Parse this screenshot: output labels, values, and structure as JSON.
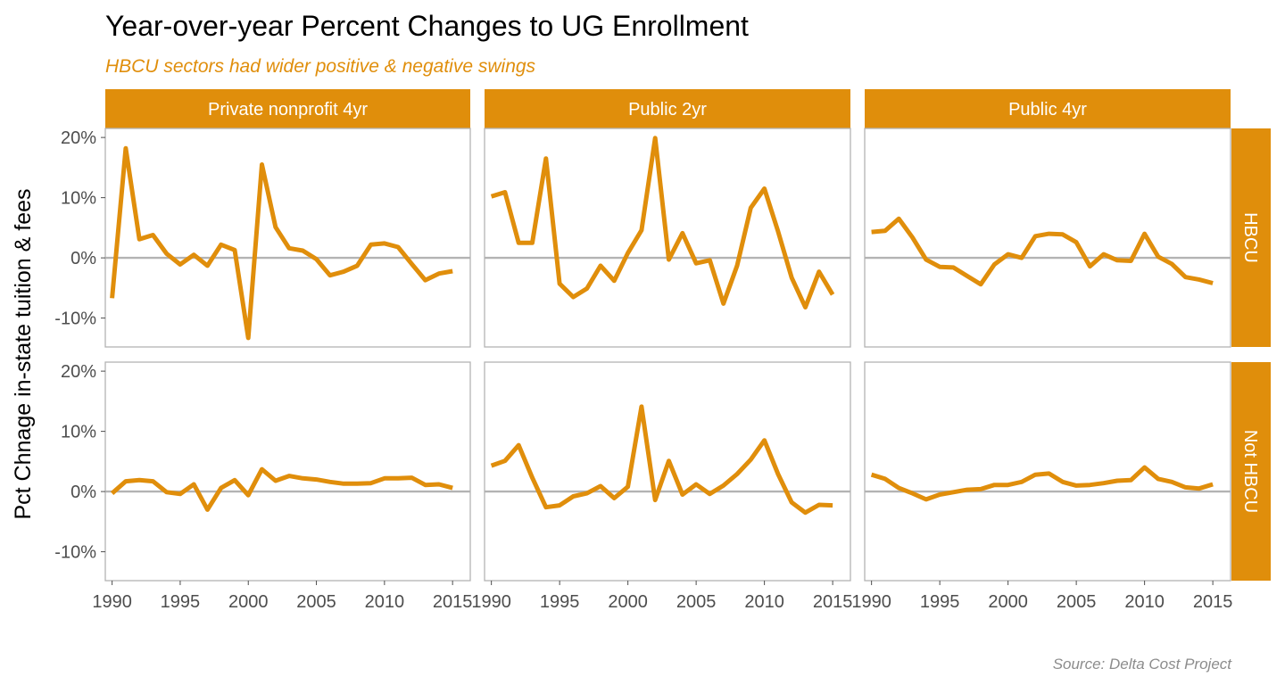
{
  "chart_data": {
    "type": "line",
    "title": "Year-over-year Percent Changes to UG Enrollment",
    "subtitle": "HBCU sectors had wider positive & negative swings",
    "caption": "Source: Delta Cost Project",
    "ylabel": "Pct Chnage in-state tuition & fees",
    "xlabel": "",
    "xlim": [
      1989.5,
      2016.3
    ],
    "ylim": [
      -14.8,
      21.5
    ],
    "x_ticks": [
      1990,
      1995,
      2000,
      2005,
      2010,
      2015
    ],
    "x_tick_labels": [
      "1990",
      "1995",
      "2000",
      "2005",
      "2010",
      "2015"
    ],
    "y_ticks": [
      -10,
      0,
      10,
      20
    ],
    "y_tick_labels": [
      "-10%",
      "0%",
      "10%",
      "20%"
    ],
    "columns": [
      "Private nonprofit 4yr",
      "Public 2yr",
      "Public 4yr"
    ],
    "rows": [
      "HBCU",
      "Not HBCU"
    ],
    "line_color": "#E08E0B",
    "strip_color": "#E08E0B",
    "grid": false,
    "x": [
      1990,
      1991,
      1992,
      1993,
      1994,
      1995,
      1996,
      1997,
      1998,
      1999,
      2000,
      2001,
      2002,
      2003,
      2004,
      2005,
      2006,
      2007,
      2008,
      2009,
      2010,
      2011,
      2012,
      2013,
      2014,
      2015
    ],
    "panels": [
      {
        "row": "HBCU",
        "column": "Private nonprofit 4yr",
        "values": [
          -6.7,
          18.2,
          3.1,
          3.8,
          0.7,
          -1.1,
          0.5,
          -1.3,
          2.2,
          1.3,
          -13.3,
          15.5,
          5.1,
          1.6,
          1.2,
          -0.2,
          -2.9,
          -2.3,
          -1.3,
          2.2,
          2.4,
          1.8,
          -1.0,
          -3.7,
          -2.6,
          -2.2
        ]
      },
      {
        "row": "HBCU",
        "column": "Public 2yr",
        "values": [
          10.2,
          10.9,
          2.5,
          2.5,
          16.5,
          -4.3,
          -6.5,
          -5.1,
          -1.3,
          -3.8,
          0.8,
          4.6,
          19.9,
          -0.3,
          4.1,
          -0.9,
          -0.4,
          -7.6,
          -1.3,
          8.3,
          11.5,
          4.4,
          -3.3,
          -8.2,
          -2.3,
          -6.1
        ]
      },
      {
        "row": "HBCU",
        "column": "Public 4yr",
        "values": [
          4.3,
          4.5,
          6.5,
          3.4,
          -0.3,
          -1.5,
          -1.6,
          -3.0,
          -4.4,
          -1.1,
          0.6,
          0.0,
          3.6,
          4.0,
          3.9,
          2.6,
          -1.4,
          0.6,
          -0.4,
          -0.5,
          4.0,
          0.2,
          -1.0,
          -3.2,
          -3.6,
          -4.2
        ]
      }
    ],
    "panels_not_hbcu": [
      {
        "row": "Not HBCU",
        "column": "Private nonprofit 4yr",
        "values": [
          -0.3,
          1.7,
          1.9,
          1.7,
          -0.1,
          -0.4,
          1.2,
          -3.0,
          0.6,
          1.9,
          -0.6,
          3.7,
          1.8,
          2.6,
          2.2,
          2.0,
          1.6,
          1.3,
          1.3,
          1.4,
          2.2,
          2.2,
          2.3,
          1.1,
          1.2,
          0.6
        ]
      },
      {
        "row": "Not HBCU",
        "column": "Public 2yr",
        "values": [
          4.3,
          5.1,
          7.7,
          2.3,
          -2.6,
          -2.3,
          -0.8,
          -0.3,
          0.9,
          -1.1,
          0.8,
          14.1,
          -1.4,
          5.1,
          -0.5,
          1.2,
          -0.4,
          1.0,
          2.9,
          5.3,
          8.5,
          2.9,
          -1.8,
          -3.5,
          -2.2,
          -2.3
        ]
      },
      {
        "row": "Not HBCU",
        "column": "Public 4yr",
        "values": [
          2.8,
          2.1,
          0.6,
          -0.3,
          -1.3,
          -0.5,
          -0.1,
          0.3,
          0.4,
          1.1,
          1.1,
          1.6,
          2.8,
          3.0,
          1.6,
          1.0,
          1.1,
          1.4,
          1.8,
          1.9,
          4.0,
          2.1,
          1.6,
          0.7,
          0.5,
          1.2
        ]
      }
    ]
  }
}
